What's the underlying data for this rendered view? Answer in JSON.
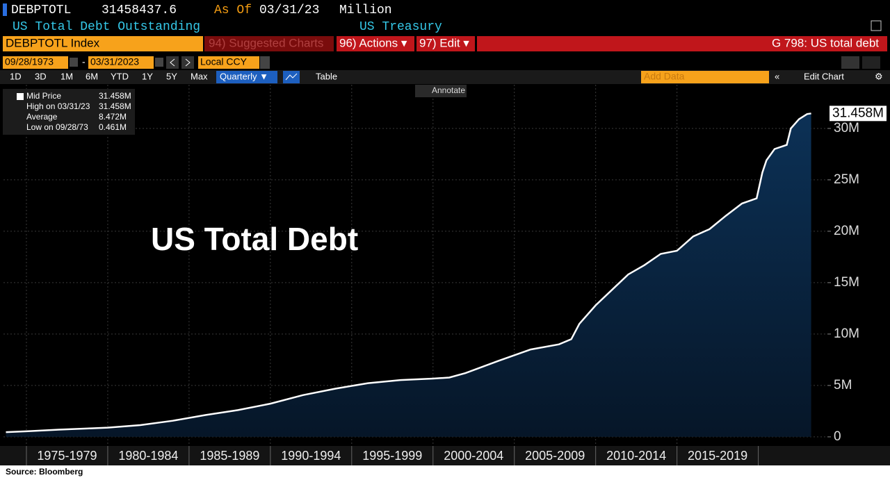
{
  "ui": {
    "ticker": "DEBPTOTL",
    "last": "31458437.6",
    "as_of_label": "As Of",
    "as_of_date": "03/31/23",
    "unit": "Million",
    "description": "US Total Debt Outstanding",
    "source_name": "US Treasury",
    "security": "DEBPTOTL Index",
    "suggested": "94) Suggested Charts",
    "actions": "96) Actions ▾",
    "edit": "97) Edit ▾",
    "page_title": "G 798: US total debt",
    "start_date": "09/28/1973",
    "date_sep": "-",
    "end_date": "03/31/2023",
    "currency": "Local CCY",
    "ranges": [
      "1D",
      "3D",
      "1M",
      "6M",
      "YTD",
      "1Y",
      "5Y",
      "Max"
    ],
    "period": "Quarterly ▼",
    "table": "Table",
    "add_data": "Add Data",
    "edit_chart": "Edit Chart",
    "annotate": "Annotate",
    "stats": [
      {
        "label": "Mid Price",
        "value": "31.458M"
      },
      {
        "label": "High on 03/31/23",
        "value": "31.458M"
      },
      {
        "label": "Average",
        "value": "8.472M"
      },
      {
        "label": "Low on 09/28/73",
        "value": "0.461M"
      }
    ],
    "footer": "Source: Bloomberg"
  },
  "chart_data": {
    "type": "area",
    "title": "US Total Debt",
    "color": "#ffffff",
    "fill": "#0c3156",
    "grid": true,
    "x": [
      1973.74,
      1975,
      1977,
      1979,
      1980,
      1982,
      1984,
      1986,
      1988,
      1990,
      1992,
      1994,
      1996,
      1998,
      2000,
      2001,
      2002,
      2004,
      2006,
      2007.75,
      2008.5,
      2009,
      2010,
      2011,
      2012,
      2013,
      2014,
      2015,
      2016,
      2017,
      2018,
      2019,
      2019.9,
      2020.25,
      2020.5,
      2021,
      2021.75,
      2022,
      2022.5,
      2023,
      2023.25
    ],
    "values": [
      461000,
      540000,
      700000,
      830000,
      900000,
      1140000,
      1570000,
      2120000,
      2600000,
      3230000,
      4060000,
      4690000,
      5220000,
      5530000,
      5670000,
      5770000,
      6200000,
      7380000,
      8500000,
      9000000,
      9500000,
      11000000,
      12800000,
      14300000,
      15800000,
      16700000,
      17800000,
      18100000,
      19500000,
      20200000,
      21500000,
      22700000,
      23200000,
      25700000,
      26900000,
      28000000,
      28400000,
      30000000,
      30900000,
      31400000,
      31458437.6
    ],
    "value_labels": [
      null,
      null,
      null,
      null,
      null,
      null,
      null,
      null,
      null,
      null,
      null,
      null,
      null,
      null,
      null,
      null,
      null,
      null,
      null,
      null,
      null,
      null,
      null,
      null,
      null,
      null,
      null,
      null,
      null,
      null,
      null,
      null,
      null,
      null,
      null,
      null,
      null,
      null,
      null,
      null,
      "31.458M"
    ],
    "xlim": [
      1973.59,
      2024.25
    ],
    "xticks": [
      {
        "value": 1977.5,
        "label": "1975-1979"
      },
      {
        "value": 1982.5,
        "label": "1980-1984"
      },
      {
        "value": 1987.5,
        "label": "1985-1989"
      },
      {
        "value": 1992.5,
        "label": "1990-1994"
      },
      {
        "value": 1997.5,
        "label": "1995-1999"
      },
      {
        "value": 2002.5,
        "label": "2000-2004"
      },
      {
        "value": 2007.5,
        "label": "2005-2009"
      },
      {
        "value": 2012.5,
        "label": "2010-2014"
      },
      {
        "value": 2017.5,
        "label": "2015-2019"
      }
    ],
    "ylim": [
      -750000,
      34250000
    ],
    "yticks": [
      0,
      {
        "value": 5000000,
        "label": "5M"
      },
      {
        "value": 10000000,
        "label": "10M"
      },
      {
        "value": 15000000,
        "label": "15M"
      },
      {
        "value": 20000000,
        "label": "20M"
      },
      {
        "value": 25000000,
        "label": "25M"
      },
      {
        "value": 30000000,
        "label": "30M"
      }
    ]
  }
}
